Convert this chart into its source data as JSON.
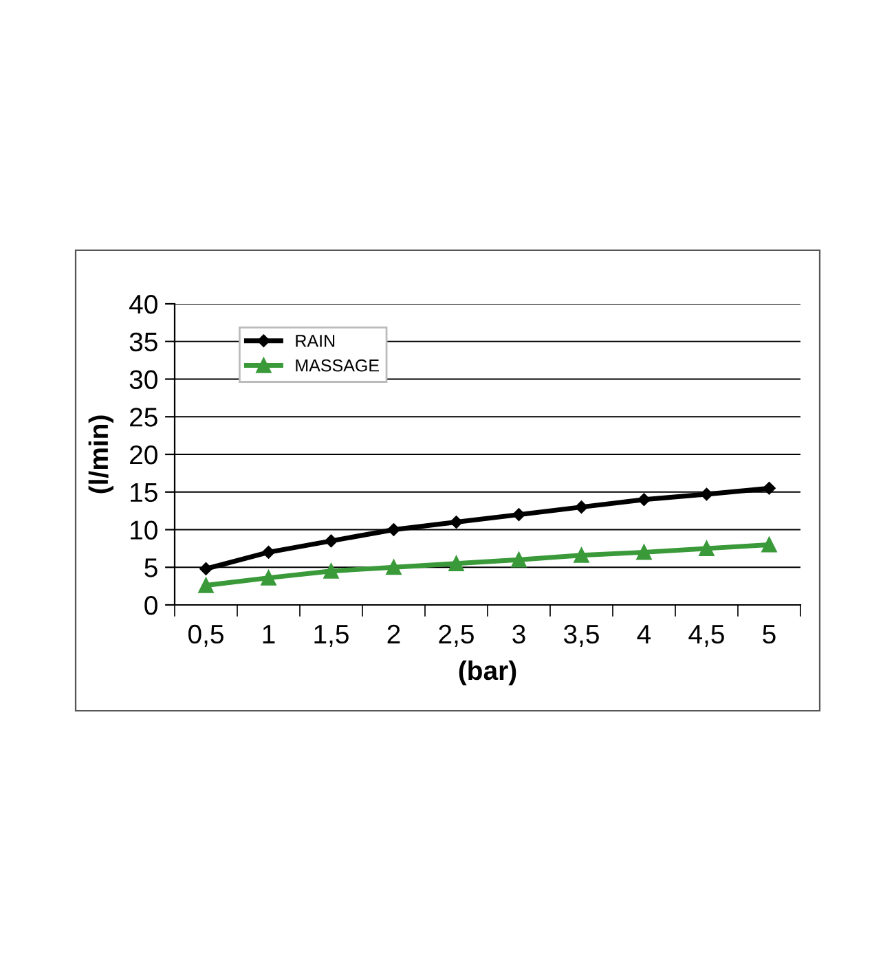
{
  "chart_data": {
    "type": "line",
    "xlabel": "(bar)",
    "ylabel": "(l/min)",
    "categories": [
      "0,5",
      "1",
      "1,5",
      "2",
      "2,5",
      "3",
      "3,5",
      "4",
      "4,5",
      "5"
    ],
    "series": [
      {
        "name": "RAIN",
        "color": "#000000",
        "marker": "diamond",
        "values": [
          4.8,
          7,
          8.5,
          10,
          11,
          12,
          13,
          14,
          14.7,
          15.5
        ]
      },
      {
        "name": "MASSAGE",
        "color": "#3a9a3a",
        "marker": "triangle",
        "values": [
          2.6,
          3.6,
          4.5,
          5,
          5.5,
          6,
          6.6,
          7,
          7.5,
          8
        ]
      }
    ],
    "ylim": [
      0,
      40
    ],
    "yticks": [
      0,
      5,
      10,
      15,
      20,
      25,
      30,
      35,
      40
    ],
    "grid": "y",
    "legend": "top left",
    "line_style": "solid"
  }
}
